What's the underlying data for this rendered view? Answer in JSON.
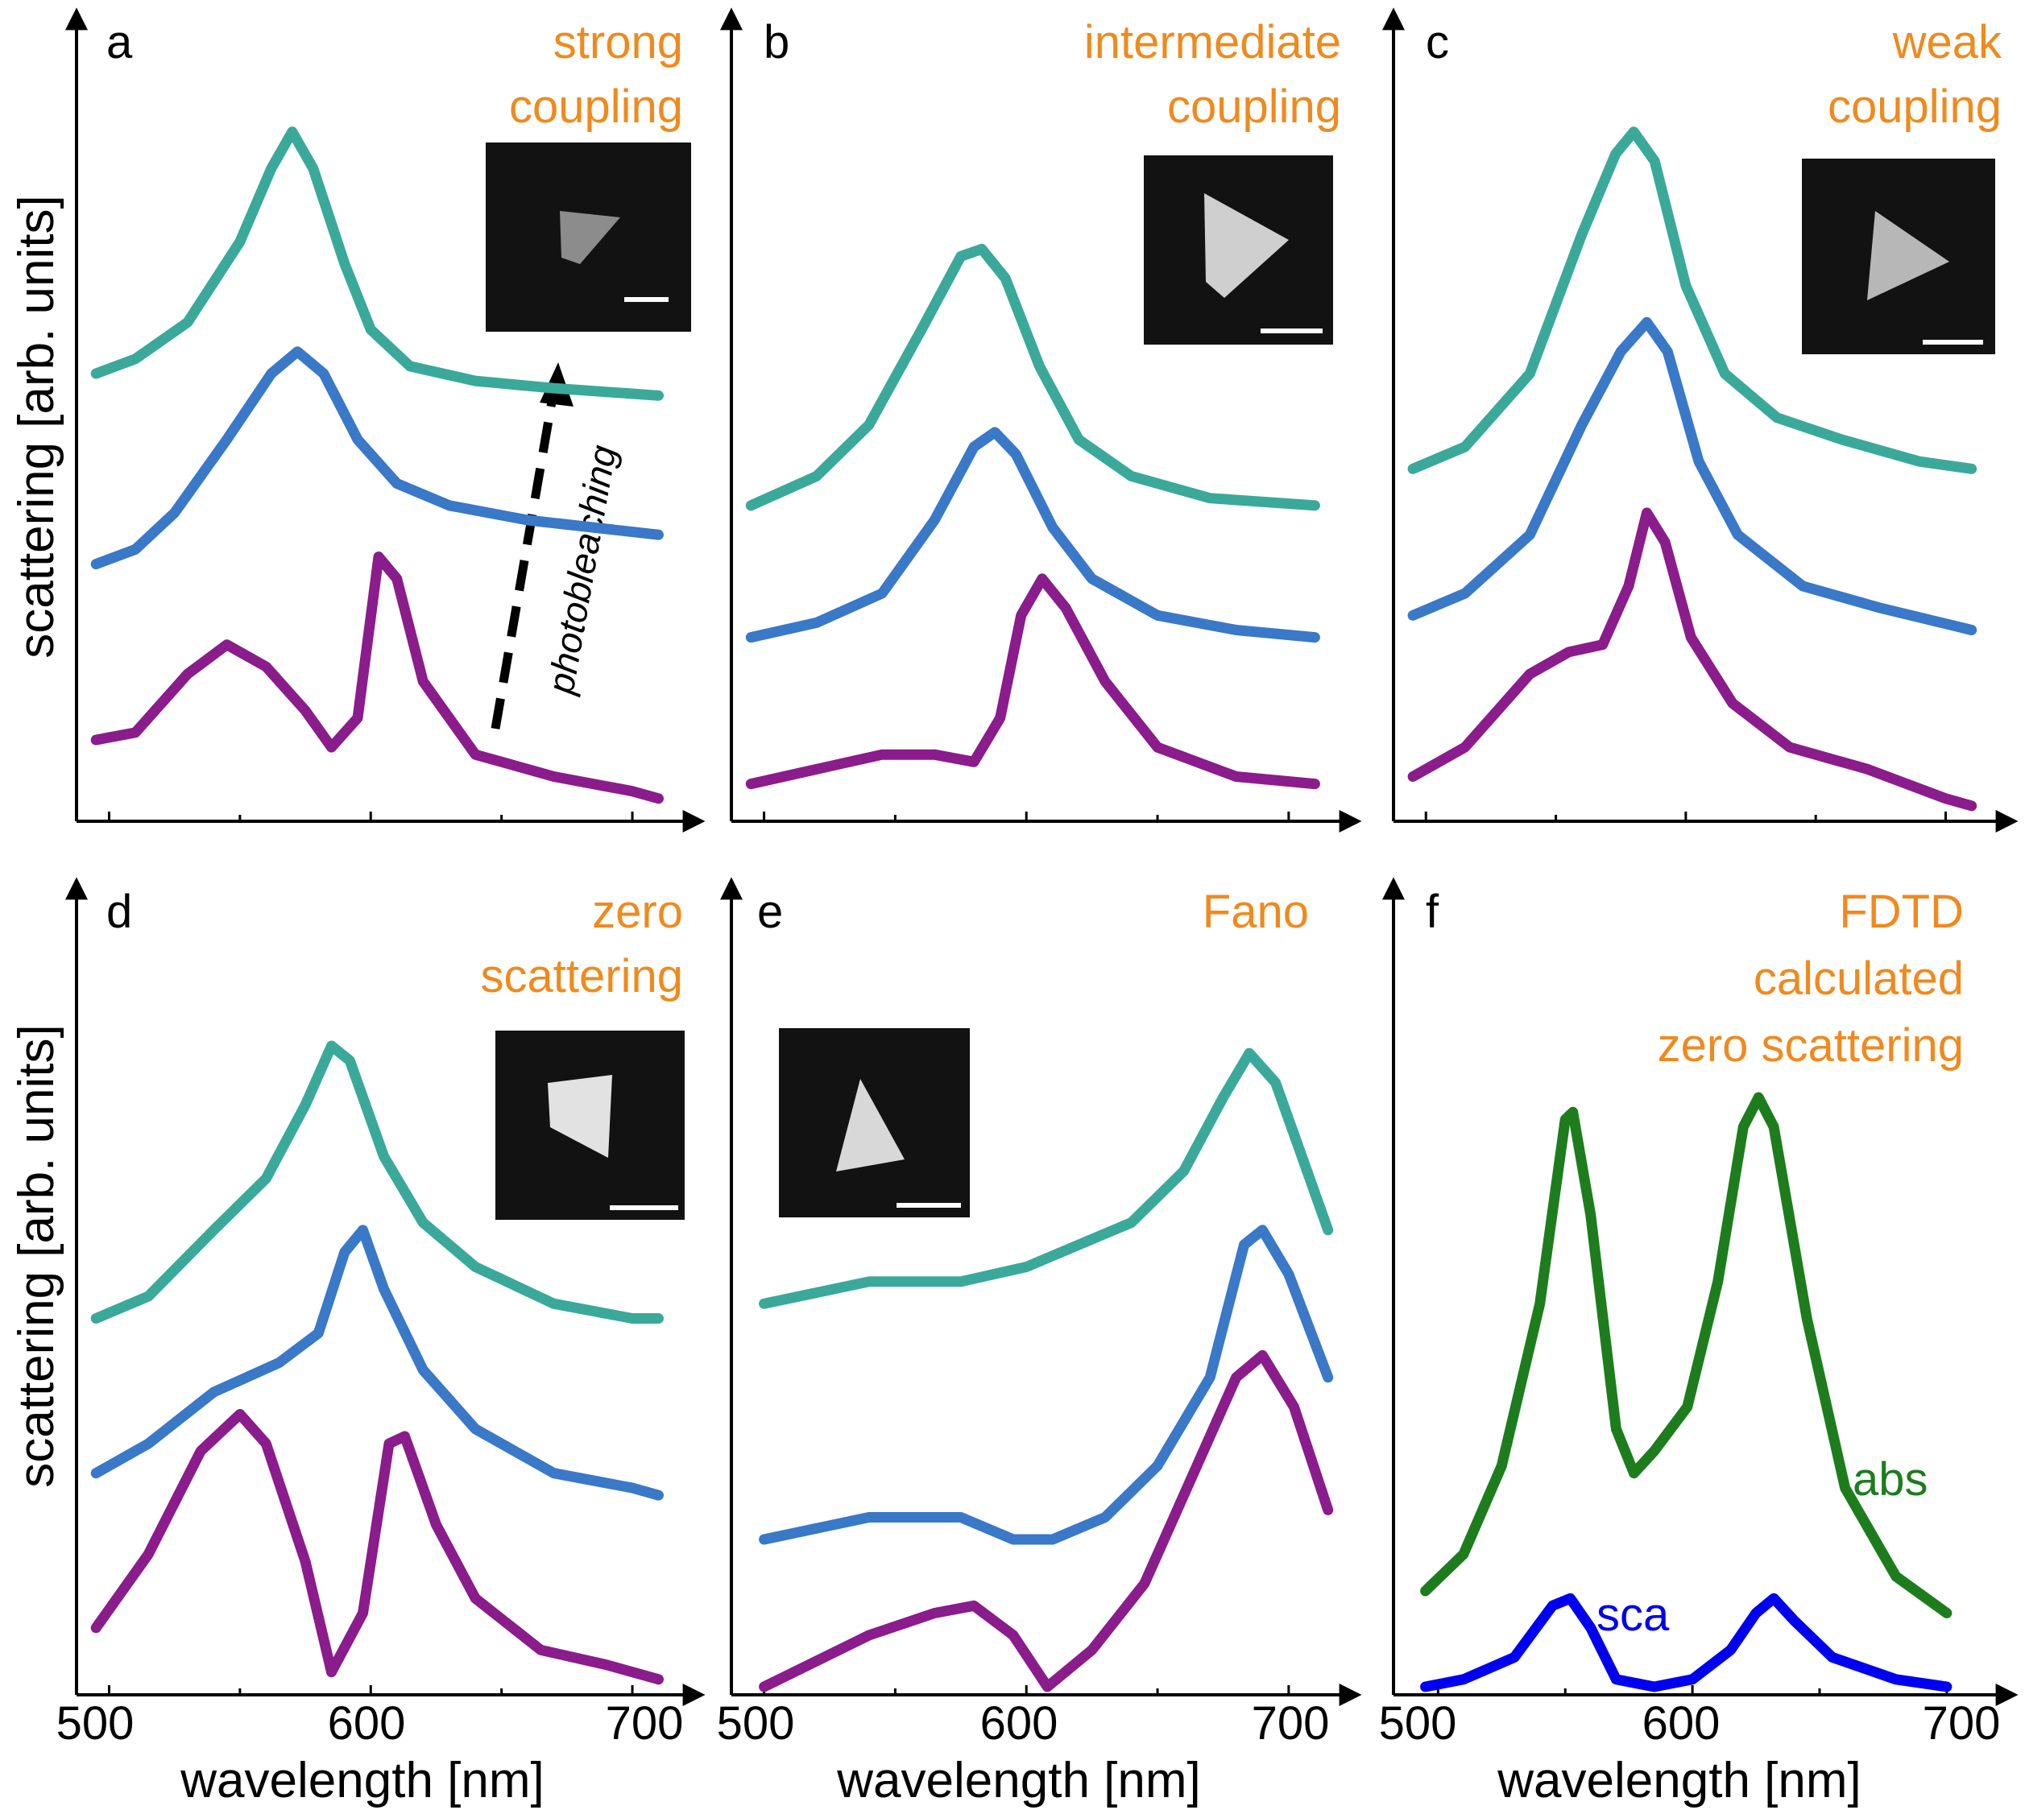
{
  "figure": {
    "ylabel": "scattering [arb. units]",
    "xlabel": "wavelength [nm]",
    "xticks": [
      "500",
      "600",
      "700"
    ]
  },
  "colors": {
    "top": "#3aa99a",
    "middle": "#3a78c8",
    "bottom": "#8a1c8c",
    "title": "#ef8a1e",
    "abs": "#1d7d1d",
    "sca": "#0000f0"
  },
  "inset_scale_bar": "white",
  "annotation": "photobleaching",
  "chart_data": [
    {
      "panel": "a",
      "type": "line",
      "title": "strong coupling",
      "xlim": [
        490,
        720
      ],
      "ylim": [
        0,
        1
      ],
      "inset": "triangle-particle",
      "series": [
        {
          "role": "top",
          "points": [
            [
              495,
              0.6
            ],
            [
              510,
              0.62
            ],
            [
              530,
              0.67
            ],
            [
              550,
              0.78
            ],
            [
              562,
              0.88
            ],
            [
              570,
              0.93
            ],
            [
              578,
              0.88
            ],
            [
              590,
              0.75
            ],
            [
              600,
              0.66
            ],
            [
              615,
              0.61
            ],
            [
              640,
              0.59
            ],
            [
              670,
              0.58
            ],
            [
              710,
              0.57
            ]
          ]
        },
        {
          "role": "middle",
          "points": [
            [
              495,
              0.34
            ],
            [
              510,
              0.36
            ],
            [
              525,
              0.41
            ],
            [
              545,
              0.51
            ],
            [
              562,
              0.6
            ],
            [
              572,
              0.63
            ],
            [
              582,
              0.6
            ],
            [
              595,
              0.51
            ],
            [
              610,
              0.45
            ],
            [
              630,
              0.42
            ],
            [
              660,
              0.4
            ],
            [
              710,
              0.38
            ]
          ]
        },
        {
          "role": "bottom",
          "points": [
            [
              495,
              0.1
            ],
            [
              510,
              0.11
            ],
            [
              530,
              0.19
            ],
            [
              545,
              0.23
            ],
            [
              560,
              0.2
            ],
            [
              575,
              0.14
            ],
            [
              585,
              0.09
            ],
            [
              595,
              0.13
            ],
            [
              603,
              0.35
            ],
            [
              610,
              0.32
            ],
            [
              620,
              0.18
            ],
            [
              640,
              0.08
            ],
            [
              670,
              0.05
            ],
            [
              700,
              0.03
            ],
            [
              710,
              0.02
            ]
          ]
        }
      ]
    },
    {
      "panel": "b",
      "type": "line",
      "title": "intermediate coupling",
      "xlim": [
        490,
        720
      ],
      "ylim": [
        0,
        1
      ],
      "inset": "triangle-particle",
      "series": [
        {
          "role": "top",
          "points": [
            [
              495,
              0.42
            ],
            [
              520,
              0.46
            ],
            [
              540,
              0.53
            ],
            [
              560,
              0.66
            ],
            [
              575,
              0.76
            ],
            [
              583,
              0.77
            ],
            [
              592,
              0.73
            ],
            [
              605,
              0.61
            ],
            [
              620,
              0.51
            ],
            [
              640,
              0.46
            ],
            [
              670,
              0.43
            ],
            [
              710,
              0.42
            ]
          ]
        },
        {
          "role": "middle",
          "points": [
            [
              495,
              0.24
            ],
            [
              520,
              0.26
            ],
            [
              545,
              0.3
            ],
            [
              565,
              0.4
            ],
            [
              580,
              0.5
            ],
            [
              588,
              0.52
            ],
            [
              596,
              0.49
            ],
            [
              610,
              0.39
            ],
            [
              625,
              0.32
            ],
            [
              650,
              0.27
            ],
            [
              680,
              0.25
            ],
            [
              710,
              0.24
            ]
          ]
        },
        {
          "role": "bottom",
          "points": [
            [
              495,
              0.04
            ],
            [
              520,
              0.06
            ],
            [
              545,
              0.08
            ],
            [
              565,
              0.08
            ],
            [
              580,
              0.07
            ],
            [
              590,
              0.13
            ],
            [
              598,
              0.27
            ],
            [
              606,
              0.32
            ],
            [
              615,
              0.28
            ],
            [
              630,
              0.18
            ],
            [
              650,
              0.09
            ],
            [
              680,
              0.05
            ],
            [
              710,
              0.04
            ]
          ]
        }
      ]
    },
    {
      "panel": "c",
      "type": "line",
      "title": "weak coupling",
      "xlim": [
        490,
        720
      ],
      "ylim": [
        0,
        1
      ],
      "inset": "triangle-particle",
      "series": [
        {
          "role": "top",
          "points": [
            [
              495,
              0.47
            ],
            [
              515,
              0.5
            ],
            [
              540,
              0.6
            ],
            [
              560,
              0.79
            ],
            [
              573,
              0.9
            ],
            [
              580,
              0.93
            ],
            [
              588,
              0.89
            ],
            [
              600,
              0.72
            ],
            [
              615,
              0.6
            ],
            [
              635,
              0.54
            ],
            [
              660,
              0.51
            ],
            [
              690,
              0.48
            ],
            [
              710,
              0.47
            ]
          ]
        },
        {
          "role": "middle",
          "points": [
            [
              495,
              0.27
            ],
            [
              515,
              0.3
            ],
            [
              540,
              0.38
            ],
            [
              560,
              0.53
            ],
            [
              575,
              0.63
            ],
            [
              585,
              0.67
            ],
            [
              593,
              0.63
            ],
            [
              605,
              0.48
            ],
            [
              620,
              0.38
            ],
            [
              645,
              0.31
            ],
            [
              675,
              0.28
            ],
            [
              710,
              0.25
            ]
          ]
        },
        {
          "role": "bottom",
          "points": [
            [
              495,
              0.05
            ],
            [
              515,
              0.09
            ],
            [
              540,
              0.19
            ],
            [
              555,
              0.22
            ],
            [
              568,
              0.23
            ],
            [
              578,
              0.31
            ],
            [
              585,
              0.41
            ],
            [
              592,
              0.37
            ],
            [
              602,
              0.24
            ],
            [
              618,
              0.15
            ],
            [
              640,
              0.09
            ],
            [
              670,
              0.06
            ],
            [
              700,
              0.02
            ],
            [
              710,
              0.01
            ]
          ]
        }
      ]
    },
    {
      "panel": "d",
      "type": "line",
      "title": "zero scattering",
      "xlim": [
        490,
        720
      ],
      "ylim": [
        0,
        1
      ],
      "inset": "triangle-particle",
      "series": [
        {
          "role": "top",
          "points": [
            [
              495,
              0.5
            ],
            [
              515,
              0.53
            ],
            [
              540,
              0.62
            ],
            [
              560,
              0.69
            ],
            [
              575,
              0.79
            ],
            [
              585,
              0.87
            ],
            [
              592,
              0.85
            ],
            [
              605,
              0.72
            ],
            [
              620,
              0.63
            ],
            [
              640,
              0.57
            ],
            [
              670,
              0.52
            ],
            [
              700,
              0.5
            ],
            [
              710,
              0.5
            ]
          ]
        },
        {
          "role": "middle",
          "points": [
            [
              495,
              0.29
            ],
            [
              515,
              0.33
            ],
            [
              540,
              0.4
            ],
            [
              565,
              0.44
            ],
            [
              580,
              0.48
            ],
            [
              590,
              0.59
            ],
            [
              597,
              0.62
            ],
            [
              605,
              0.54
            ],
            [
              620,
              0.43
            ],
            [
              640,
              0.35
            ],
            [
              670,
              0.29
            ],
            [
              700,
              0.27
            ],
            [
              710,
              0.26
            ]
          ]
        },
        {
          "role": "bottom",
          "points": [
            [
              495,
              0.08
            ],
            [
              515,
              0.18
            ],
            [
              535,
              0.32
            ],
            [
              550,
              0.37
            ],
            [
              560,
              0.33
            ],
            [
              575,
              0.17
            ],
            [
              585,
              0.02
            ],
            [
              597,
              0.1
            ],
            [
              607,
              0.33
            ],
            [
              613,
              0.34
            ],
            [
              625,
              0.22
            ],
            [
              640,
              0.12
            ],
            [
              665,
              0.05
            ],
            [
              690,
              0.03
            ],
            [
              710,
              0.01
            ]
          ]
        }
      ]
    },
    {
      "panel": "e",
      "type": "line",
      "title": "Fano",
      "xlim": [
        490,
        720
      ],
      "ylim": [
        0,
        1
      ],
      "inset": "triangle-particle",
      "series": [
        {
          "role": "top",
          "points": [
            [
              500,
              0.52
            ],
            [
              540,
              0.55
            ],
            [
              575,
              0.55
            ],
            [
              600,
              0.57
            ],
            [
              620,
              0.6
            ],
            [
              640,
              0.63
            ],
            [
              660,
              0.7
            ],
            [
              675,
              0.8
            ],
            [
              685,
              0.86
            ],
            [
              695,
              0.82
            ],
            [
              705,
              0.72
            ],
            [
              715,
              0.62
            ]
          ]
        },
        {
          "role": "middle",
          "points": [
            [
              500,
              0.2
            ],
            [
              540,
              0.23
            ],
            [
              575,
              0.23
            ],
            [
              595,
              0.2
            ],
            [
              610,
              0.2
            ],
            [
              630,
              0.23
            ],
            [
              650,
              0.3
            ],
            [
              670,
              0.42
            ],
            [
              683,
              0.6
            ],
            [
              690,
              0.62
            ],
            [
              700,
              0.56
            ],
            [
              715,
              0.42
            ]
          ]
        },
        {
          "role": "bottom",
          "points": [
            [
              500,
              0.0
            ],
            [
              540,
              0.07
            ],
            [
              565,
              0.1
            ],
            [
              580,
              0.11
            ],
            [
              595,
              0.07
            ],
            [
              608,
              0.0
            ],
            [
              625,
              0.05
            ],
            [
              645,
              0.14
            ],
            [
              665,
              0.3
            ],
            [
              680,
              0.42
            ],
            [
              690,
              0.45
            ],
            [
              702,
              0.38
            ],
            [
              715,
              0.24
            ]
          ]
        }
      ]
    },
    {
      "panel": "f",
      "type": "line",
      "title": "FDTD calculated zero scattering",
      "xlim": [
        485,
        720
      ],
      "ylim": [
        0,
        1
      ],
      "series": [
        {
          "name": "abs",
          "role": "abs",
          "points": [
            [
              495,
              0.13
            ],
            [
              510,
              0.18
            ],
            [
              525,
              0.3
            ],
            [
              540,
              0.52
            ],
            [
              550,
              0.77
            ],
            [
              553,
              0.78
            ],
            [
              560,
              0.64
            ],
            [
              570,
              0.35
            ],
            [
              577,
              0.29
            ],
            [
              585,
              0.32
            ],
            [
              598,
              0.38
            ],
            [
              610,
              0.55
            ],
            [
              620,
              0.76
            ],
            [
              626,
              0.8
            ],
            [
              632,
              0.76
            ],
            [
              645,
              0.5
            ],
            [
              660,
              0.27
            ],
            [
              680,
              0.15
            ],
            [
              700,
              0.1
            ]
          ]
        },
        {
          "name": "sca",
          "role": "sca",
          "points": [
            [
              495,
              0.0
            ],
            [
              510,
              0.01
            ],
            [
              530,
              0.04
            ],
            [
              545,
              0.11
            ],
            [
              552,
              0.12
            ],
            [
              560,
              0.08
            ],
            [
              570,
              0.01
            ],
            [
              585,
              0.0
            ],
            [
              600,
              0.01
            ],
            [
              615,
              0.05
            ],
            [
              625,
              0.1
            ],
            [
              632,
              0.12
            ],
            [
              640,
              0.09
            ],
            [
              655,
              0.04
            ],
            [
              680,
              0.01
            ],
            [
              700,
              0.0
            ]
          ]
        }
      ]
    }
  ]
}
